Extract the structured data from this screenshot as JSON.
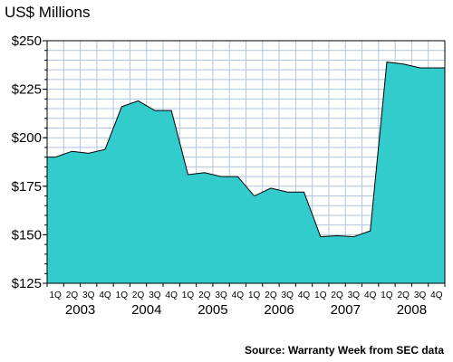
{
  "chart_data": {
    "type": "area",
    "title": "US$ Millions",
    "xlabel": "",
    "ylabel": "",
    "ylim": [
      125,
      250
    ],
    "yticks": [
      "$125",
      "$150",
      "$175",
      "$200",
      "$225",
      "$250"
    ],
    "ytick_values": [
      125,
      150,
      175,
      200,
      225,
      250
    ],
    "quarter_labels": [
      "1Q",
      "2Q",
      "3Q",
      "4Q"
    ],
    "years": [
      "2003",
      "2004",
      "2005",
      "2006",
      "2007",
      "2008"
    ],
    "x": [
      "2003 1Q",
      "2003 2Q",
      "2003 3Q",
      "2003 4Q",
      "2004 1Q",
      "2004 2Q",
      "2004 3Q",
      "2004 4Q",
      "2005 1Q",
      "2005 2Q",
      "2005 3Q",
      "2005 4Q",
      "2006 1Q",
      "2006 2Q",
      "2006 3Q",
      "2006 4Q",
      "2007 1Q",
      "2007 2Q",
      "2007 3Q",
      "2007 4Q",
      "2008 1Q",
      "2008 2Q",
      "2008 3Q",
      "2008 4Q"
    ],
    "values": [
      190,
      193,
      192,
      194,
      216,
      219,
      214,
      214,
      181,
      182,
      180,
      180,
      170,
      174,
      172,
      172,
      149,
      149.5,
      149,
      152,
      239,
      238,
      236,
      236
    ],
    "grid": true,
    "fill_color": "#33CCCC",
    "grid_color": "#B0C4DE",
    "source": "Source: Warranty Week from SEC data"
  }
}
